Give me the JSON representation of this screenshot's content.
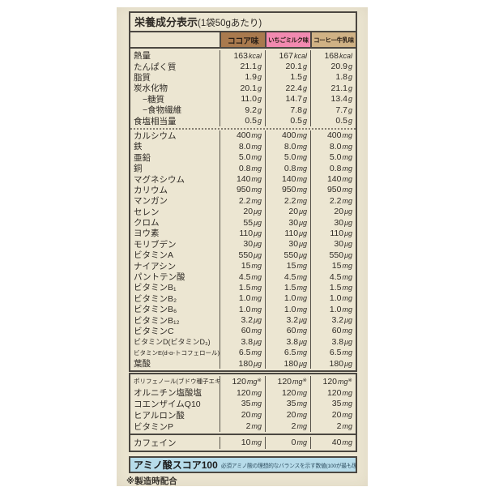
{
  "title": {
    "main": "栄養成分表示",
    "sub": "(1袋50gあたり)"
  },
  "flavors": [
    {
      "label": "ココア味",
      "color": "#a97a4e"
    },
    {
      "label": "いちごミルク味",
      "color": "#f28ab0"
    },
    {
      "label": "コーヒー牛乳味",
      "color": "#d0b285"
    }
  ],
  "table1": {
    "section_a": [
      {
        "label": "熱量",
        "values": [
          "163kcal",
          "167kcal",
          "168kcal"
        ]
      },
      {
        "label": "たんぱく質",
        "values": [
          "21.1g",
          "20.1g",
          "20.9g"
        ]
      },
      {
        "label": "脂質",
        "values": [
          "1.9g",
          "1.5g",
          "1.8g"
        ]
      },
      {
        "label": "炭水化物",
        "values": [
          "20.1g",
          "22.4g",
          "21.1g"
        ]
      },
      {
        "label": "−糖質",
        "indent": true,
        "values": [
          "11.0g",
          "14.7g",
          "13.4g"
        ]
      },
      {
        "label": "−食物繊維",
        "indent": true,
        "values": [
          "9.2g",
          "7.8g",
          "7.7g"
        ]
      },
      {
        "label": "食塩相当量",
        "values": [
          "0.5g",
          "0.5g",
          "0.5g"
        ]
      }
    ],
    "section_b": [
      {
        "label": "カルシウム",
        "values": [
          "400mg",
          "400mg",
          "400mg"
        ]
      },
      {
        "label": "鉄",
        "values": [
          "8.0mg",
          "8.0mg",
          "8.0mg"
        ]
      },
      {
        "label": "亜鉛",
        "values": [
          "5.0mg",
          "5.0mg",
          "5.0mg"
        ]
      },
      {
        "label": "銅",
        "values": [
          "0.8mg",
          "0.8mg",
          "0.8mg"
        ]
      },
      {
        "label": "マグネシウム",
        "values": [
          "140mg",
          "140mg",
          "140mg"
        ]
      },
      {
        "label": "カリウム",
        "values": [
          "950mg",
          "950mg",
          "950mg"
        ]
      },
      {
        "label": "マンガン",
        "values": [
          "2.2mg",
          "2.2mg",
          "2.2mg"
        ]
      },
      {
        "label": "セレン",
        "values": [
          "20μg",
          "20μg",
          "20μg"
        ]
      },
      {
        "label": "クロム",
        "values": [
          "55μg",
          "30μg",
          "30μg"
        ]
      },
      {
        "label": "ヨウ素",
        "values": [
          "110μg",
          "110μg",
          "110μg"
        ]
      },
      {
        "label": "モリブデン",
        "values": [
          "30μg",
          "30μg",
          "30μg"
        ]
      },
      {
        "label": "ビタミンA",
        "values": [
          "550μg",
          "550μg",
          "550μg"
        ]
      },
      {
        "label": "ナイアシン",
        "values": [
          "15mg",
          "15mg",
          "15mg"
        ]
      },
      {
        "label": "パントテン酸",
        "values": [
          "4.5mg",
          "4.5mg",
          "4.5mg"
        ]
      },
      {
        "label": "ビタミンB₁",
        "values": [
          "1.5mg",
          "1.5mg",
          "1.5mg"
        ]
      },
      {
        "label": "ビタミンB₂",
        "values": [
          "1.0mg",
          "1.0mg",
          "1.0mg"
        ]
      },
      {
        "label": "ビタミンB₆",
        "values": [
          "1.0mg",
          "1.0mg",
          "1.0mg"
        ]
      },
      {
        "label": "ビタミンB₁₂",
        "values": [
          "3.2μg",
          "3.2μg",
          "3.2μg"
        ]
      },
      {
        "label": "ビタミンC",
        "values": [
          "60mg",
          "60mg",
          "60mg"
        ]
      },
      {
        "label": "ビタミンD(ビタミンD₃)",
        "values": [
          "3.8μg",
          "3.8μg",
          "3.8μg"
        ]
      },
      {
        "label": "ビタミンE(d-α-トコフェロール)",
        "values": [
          "6.5mg",
          "6.5mg",
          "6.5mg"
        ]
      },
      {
        "label": "葉酸",
        "values": [
          "180μg",
          "180μg",
          "180μg"
        ]
      }
    ]
  },
  "table2": {
    "rows": [
      {
        "label": "ポリフェノール(ブドウ種子エキス由来)",
        "values": [
          "120mg※",
          "120mg※",
          "120mg※"
        ]
      },
      {
        "label": "オルニチン塩酸塩",
        "values": [
          "120mg",
          "120mg",
          "120mg"
        ]
      },
      {
        "label": "コエンザイムQ10",
        "values": [
          "35mg",
          "35mg",
          "35mg"
        ]
      },
      {
        "label": "ヒアルロン酸",
        "values": [
          "20mg",
          "20mg",
          "20mg"
        ]
      },
      {
        "label": "ビタミンP",
        "values": [
          "2mg",
          "2mg",
          "2mg"
        ]
      }
    ],
    "caffeine": {
      "label": "カフェイン",
      "values": [
        "10mg",
        "0mg",
        "40mg"
      ]
    }
  },
  "score_box": {
    "title": "アミノ酸スコア100",
    "note": "必須アミノ酸の理想的なバランスを示す数値(100が最も理想的)"
  },
  "footnote": "※製造時配合",
  "colors": {
    "label_background": "#ece6d2",
    "border": "#4b4741",
    "score_background": "#b7dcea",
    "cocoa_header": "#a97a4e",
    "strawberry_header": "#f28ab0",
    "coffee_header": "#d0b285"
  }
}
